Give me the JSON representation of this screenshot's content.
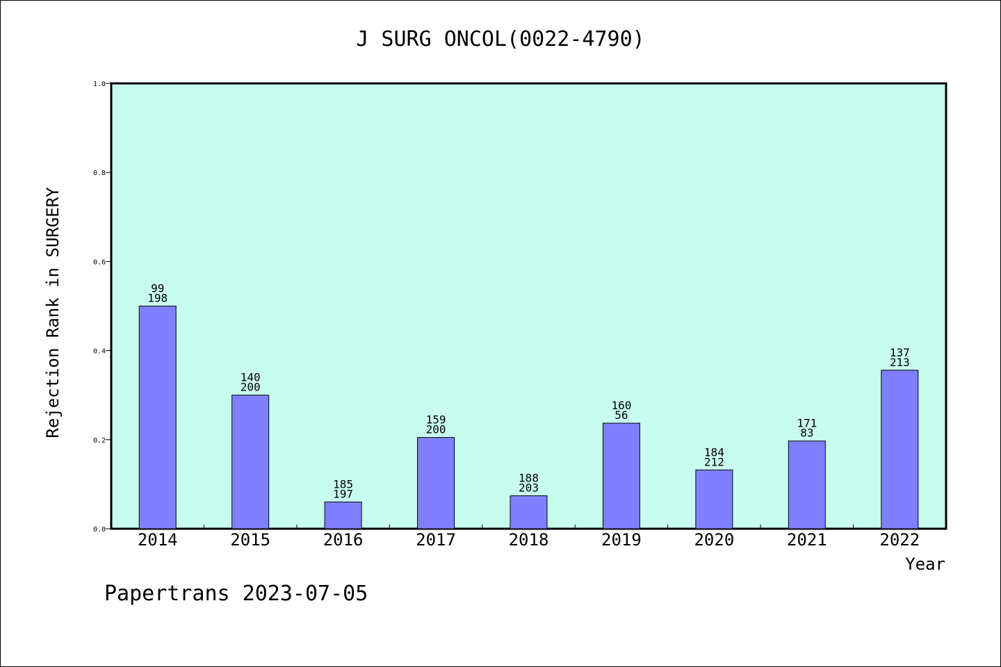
{
  "chart_data": {
    "type": "bar",
    "title": "J SURG ONCOL(0022-4790)",
    "xlabel": "Year",
    "ylabel": "Rejection Rank in SURGERY",
    "ylim": [
      0,
      1.0
    ],
    "yticks": [
      "0.0",
      "0.2",
      "0.4",
      "0.6",
      "0.8",
      "1.0"
    ],
    "categories": [
      "2014",
      "2015",
      "2016",
      "2017",
      "2018",
      "2019",
      "2020",
      "2021",
      "2022"
    ],
    "values": [
      0.5,
      0.3,
      0.06,
      0.205,
      0.074,
      0.237,
      0.132,
      0.197,
      0.356
    ],
    "labels_top": [
      "99",
      "140",
      "185",
      "159",
      "188",
      "160",
      "184",
      "171",
      "137"
    ],
    "labels_bottom": [
      "198",
      "200",
      "197",
      "200",
      "203",
      "56",
      "212",
      "83",
      "213"
    ],
    "grid": false,
    "colors": {
      "plot_bg": "#c8fcee",
      "bar_fill": "#8080ff",
      "bar_stroke": "#000000"
    }
  },
  "footer": "Papertrans 2023-07-05"
}
